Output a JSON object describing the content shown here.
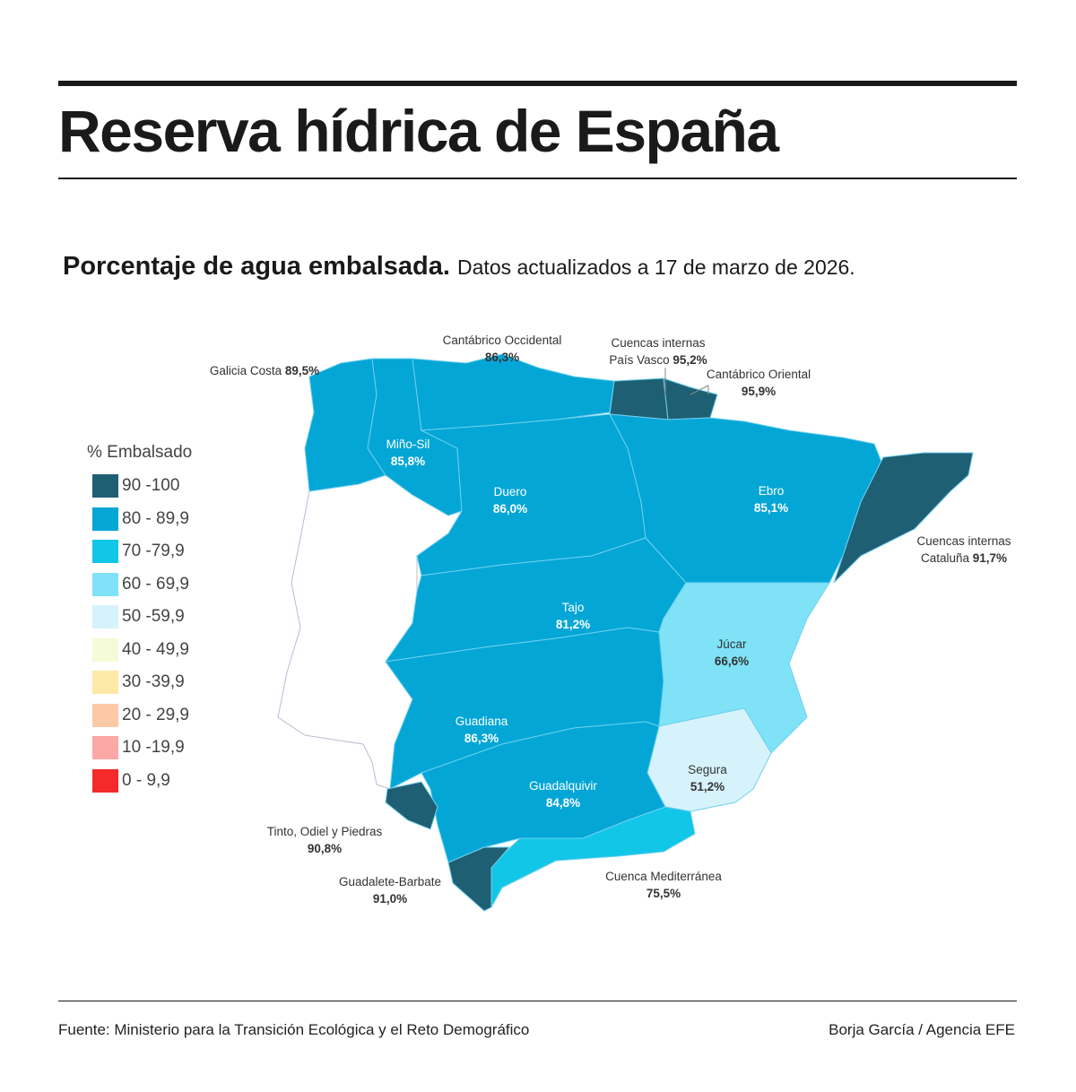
{
  "title": "Reserva hídrica de España",
  "subtitle": {
    "bold": "Porcentaje de agua embalsada.",
    "normal": "Datos actualizados a 17 de marzo de 2026."
  },
  "legend": {
    "title": "% Embalsado",
    "items": [
      {
        "label": "90 -100",
        "color": "#1f5f73"
      },
      {
        "label": "80 - 89,9",
        "color": "#04a6d6"
      },
      {
        "label": "70 -79,9",
        "color": "#12c6e8"
      },
      {
        "label": "60 - 69,9",
        "color": "#7fe2f7"
      },
      {
        "label": "50 -59,9",
        "color": "#d6f3fb"
      },
      {
        "label": "40 - 49,9",
        "color": "#f5fbd6"
      },
      {
        "label": "30 -39,9",
        "color": "#fde9a8"
      },
      {
        "label": "20 - 29,9",
        "color": "#fcc9a6"
      },
      {
        "label": "10 -19,9",
        "color": "#fba8a6"
      },
      {
        "label": "0 - 9,9",
        "color": "#f42a2a"
      }
    ]
  },
  "regions": [
    {
      "id": "galicia",
      "name": "Galicia Costa",
      "value": "89,5%",
      "color": "#04a6d6"
    },
    {
      "id": "minosil",
      "name": "Miño-Sil",
      "value": "85,8%",
      "color": "#04a6d6"
    },
    {
      "id": "cantocc",
      "name": "Cantábrico Occidental",
      "value": "86,3%",
      "color": "#04a6d6"
    },
    {
      "id": "paisvasco",
      "name": "Cuencas internas País Vasco",
      "value": "95,2%",
      "color": "#1f5f73"
    },
    {
      "id": "cantor",
      "name": "Cantábrico Oriental",
      "value": "95,9%",
      "color": "#1f5f73"
    },
    {
      "id": "duero",
      "name": "Duero",
      "value": "86,0%",
      "color": "#04a6d6"
    },
    {
      "id": "ebro",
      "name": "Ebro",
      "value": "85,1%",
      "color": "#04a6d6"
    },
    {
      "id": "cataluna",
      "name": "Cuencas internas Cataluña",
      "value": "91,7%",
      "color": "#1f5f73"
    },
    {
      "id": "tajo",
      "name": "Tajo",
      "value": "81,2%",
      "color": "#04a6d6"
    },
    {
      "id": "jucar",
      "name": "Júcar",
      "value": "66,6%",
      "color": "#7fe2f7"
    },
    {
      "id": "guadiana",
      "name": "Guadiana",
      "value": "86,3%",
      "color": "#04a6d6"
    },
    {
      "id": "segura",
      "name": "Segura",
      "value": "51,2%",
      "color": "#d6f3fb"
    },
    {
      "id": "guadalquivir",
      "name": "Guadalquivir",
      "value": "84,8%",
      "color": "#04a6d6"
    },
    {
      "id": "mediterranea",
      "name": "Cuenca Mediterránea",
      "value": "75,5%",
      "color": "#12c6e8"
    },
    {
      "id": "tinto",
      "name": "Tinto, Odiel y Piedras",
      "value": "90,8%",
      "color": "#1f5f73"
    },
    {
      "id": "guadalete",
      "name": "Guadalete-Barbate",
      "value": "91,0%",
      "color": "#1f5f73"
    }
  ],
  "labels": {
    "galicia": "Galicia Costa",
    "minosil": "Miño-Sil",
    "cantocc": "Cantábrico Occidental",
    "paisvasco_1": "Cuencas internas",
    "paisvasco_2": "País Vasco",
    "cantor": "Cantábrico Oriental",
    "duero": "Duero",
    "ebro": "Ebro",
    "cataluna_1": "Cuencas internas",
    "cataluna_2": "Cataluña",
    "tajo": "Tajo",
    "jucar": "Júcar",
    "guadiana": "Guadiana",
    "segura": "Segura",
    "guadalquivir": "Guadalquivir",
    "mediterranea": "Cuenca Mediterránea",
    "tinto": "Tinto, Odiel y Piedras",
    "guadalete": "Guadalete-Barbate"
  },
  "footer": {
    "source": "Fuente: Ministerio para la Transición Ecológica y el Reto Demográfico",
    "credit": "Borja García / Agencia EFE"
  }
}
